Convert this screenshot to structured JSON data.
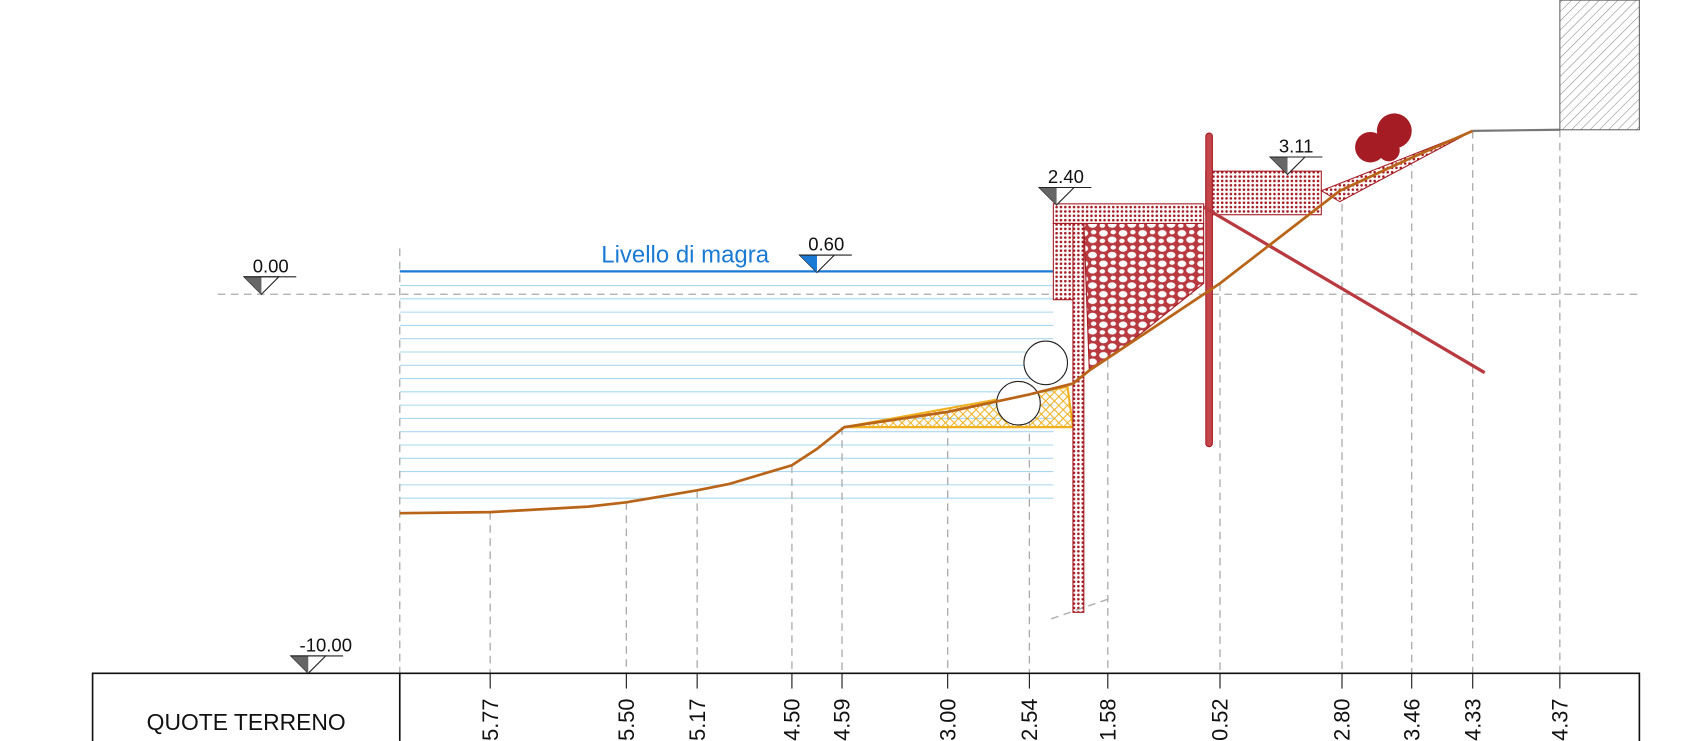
{
  "water_label": "Livello di magra",
  "levels": [
    "0.00",
    "0.60",
    "2.40",
    "3.11",
    "-10.00"
  ],
  "table": {
    "row_label": "QUOTE TERRENO",
    "values": [
      "5.77",
      "5.50",
      "5.17",
      "4.50",
      "4.59",
      "3.00",
      "2.54",
      "1.58",
      "0.52",
      "2.80",
      "3.46",
      "4.33",
      "4.37"
    ]
  }
}
